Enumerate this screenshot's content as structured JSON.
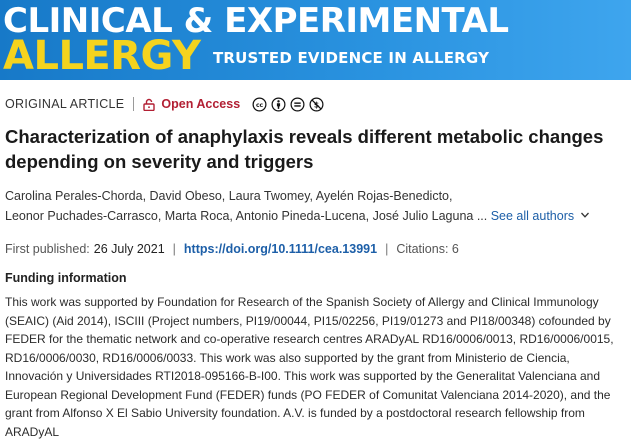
{
  "banner": {
    "journal_line1": "CLINICAL & EXPERIMENTAL",
    "journal_line2": "ALLERGY",
    "tagline": "TRUSTED EVIDENCE IN ALLERGY",
    "colors": {
      "background": "#1f86d6",
      "line1": "#ffffff",
      "line2": "#f5d31e"
    }
  },
  "meta": {
    "article_type": "ORIGINAL ARTICLE",
    "access_label": "Open Access",
    "access_color": "#b21f33",
    "license_icons": [
      "cc-icon",
      "by-icon",
      "nd-icon",
      "nc-icon"
    ]
  },
  "article": {
    "title": "Characterization of anaphylaxis reveals different metabolic changes depending on severity and triggers",
    "authors_line1": "Carolina Perales-Chorda,  David Obeso,  Laura Twomey,  Ayelén Rojas-Benedicto,",
    "authors_line2": "Leonor Puchades-Carrasco,  Marta Roca,  Antonio Pineda-Lucena,  José Julio Laguna ... ",
    "see_all": "See all authors"
  },
  "publication": {
    "first_published_label": "First published:",
    "first_published_value": "26 July 2021",
    "doi": "https://doi.org/10.1111/cea.13991",
    "citations": "Citations: 6"
  },
  "funding": {
    "heading": "Funding information",
    "text": "This work was supported by Foundation for Research of the Spanish Society of Allergy and Clinical Immunology (SEAIC) (Aid 2014), ISCIII (Project numbers, PI19/00044, PI15/02256, PI19/01273 and PI18/00348) cofounded by FEDER for the thematic network and co-operative research centres ARADyAL RD16/0006/0013, RD16/0006/0015, RD16/0006/0030, RD16/0006/0033. This work was also supported by the grant from Ministerio de Ciencia, Innovación y Universidades RTI2018-095166-B-I00. This work was supported by the Generalitat Valenciana and European Regional Development Fund (FEDER) funds (PO FEDER of Comunitat Valenciana 2014-2020), and the grant from Alfonso X El Sabio University foundation. A.V. is funded by a postdoctoral research fellowship from ARADyAL"
  }
}
